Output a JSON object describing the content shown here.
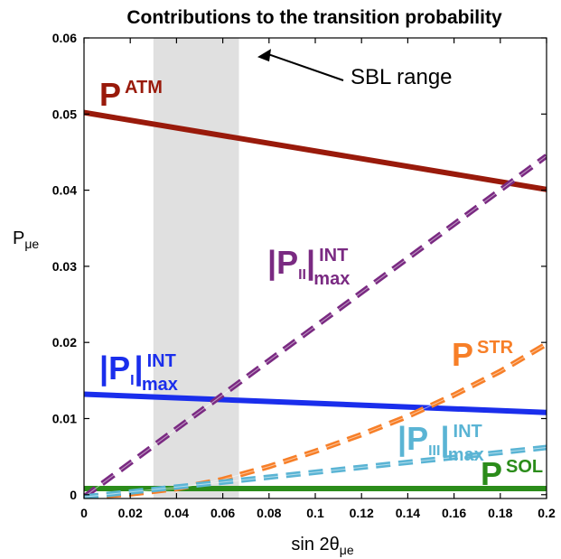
{
  "chart_data": {
    "type": "line",
    "title": "Contributions to the transition probability",
    "xlabel": {
      "main": "sin 2θ",
      "sub": "μe"
    },
    "ylabel": {
      "main": "P",
      "sub": "μe"
    },
    "xlim": [
      0,
      0.2
    ],
    "ylim": [
      -0.0005,
      0.06
    ],
    "xticks": [
      0,
      0.02,
      0.04,
      0.06,
      0.08,
      0.1,
      0.12,
      0.14,
      0.16,
      0.18,
      0.2
    ],
    "xtick_labels": [
      "0",
      "0.02",
      "0.04",
      "0.06",
      "0.08",
      "0.1",
      "0.12",
      "0.14",
      "0.16",
      "0.18",
      "0.2"
    ],
    "yticks": [
      0,
      0.01,
      0.02,
      0.03,
      0.04,
      0.05,
      0.06
    ],
    "ytick_labels": [
      "0",
      "0.01",
      "0.02",
      "0.03",
      "0.04",
      "0.05",
      "0.06"
    ],
    "grid": false,
    "shaded_region": {
      "x": [
        0.03,
        0.067
      ],
      "color": "#e0e0e0"
    },
    "annotation": {
      "text": "SBL range",
      "arrow_to": [
        0.075,
        0.0575
      ]
    },
    "series": [
      {
        "key": "atm",
        "style": "solid",
        "color": "#991a0b",
        "x": [
          0,
          0.2
        ],
        "y": [
          0.0502,
          0.0401
        ]
      },
      {
        "key": "pi",
        "style": "solid",
        "color": "#1a2eec",
        "x": [
          0,
          0.2
        ],
        "y": [
          0.0132,
          0.0108
        ]
      },
      {
        "key": "sol",
        "style": "solid",
        "color": "#2b8c1a",
        "x": [
          0,
          0.2
        ],
        "y": [
          0.0008,
          0.0008
        ]
      },
      {
        "key": "pii",
        "style": "dashed",
        "color": "#7a2a82",
        "x": [
          0,
          0.2
        ],
        "y": [
          -0.0003,
          0.0445
        ]
      },
      {
        "key": "str",
        "style": "dashed",
        "color": "#f77f28",
        "x": [
          0,
          0.02,
          0.04,
          0.06,
          0.08,
          0.1,
          0.12,
          0.14,
          0.16,
          0.18,
          0.2
        ],
        "y": [
          -0.0003,
          0.0001,
          0.0008,
          0.002,
          0.0037,
          0.0057,
          0.0079,
          0.0103,
          0.0131,
          0.0162,
          0.0198
        ]
      },
      {
        "key": "piii",
        "style": "dashed",
        "color": "#5ab4d4",
        "x": [
          0,
          0.2
        ],
        "y": [
          -0.0003,
          0.0062
        ]
      }
    ],
    "labels": [
      {
        "key": "atm",
        "main": "P",
        "sup": "ATM",
        "color": "#991a0b"
      },
      {
        "key": "pii",
        "main": "|P",
        "sub": "II",
        "close": "|",
        "sup": "INT",
        "sub2": "max",
        "color": "#7a2a82"
      },
      {
        "key": "str",
        "main": "P",
        "sup": "STR",
        "color": "#f77f28"
      },
      {
        "key": "pi",
        "main": "|P",
        "sub": "I",
        "close": "|",
        "sup": "INT",
        "sub2": "max",
        "color": "#1a2eec"
      },
      {
        "key": "piii",
        "main": "|P",
        "sub": "III",
        "close": "|",
        "sup": "INT",
        "sub2": "max",
        "color": "#5ab4d4"
      },
      {
        "key": "sol",
        "main": "P",
        "sup": "SOL",
        "color": "#2b8c1a"
      }
    ]
  }
}
